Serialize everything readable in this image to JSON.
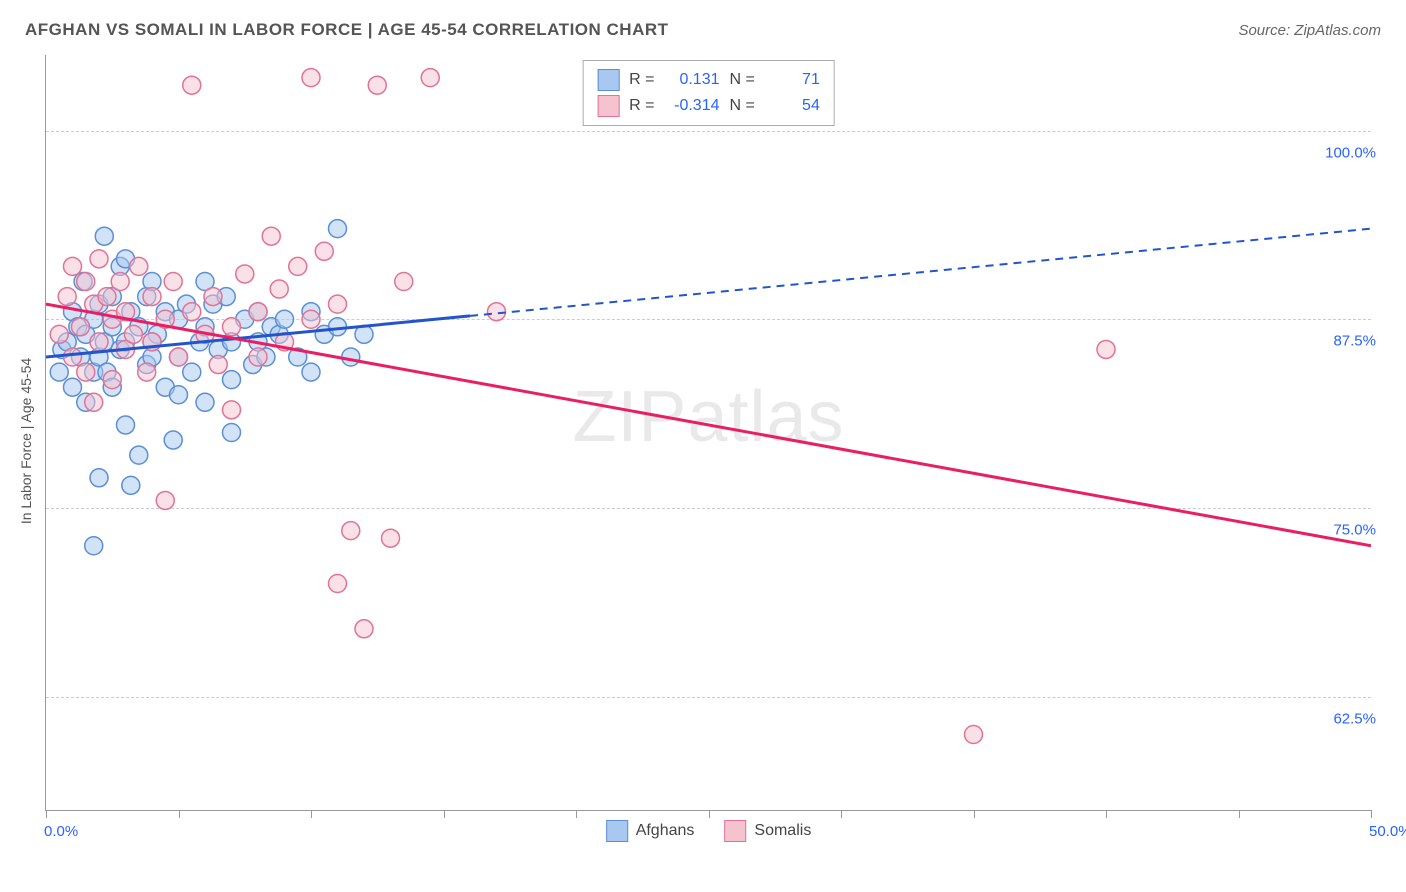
{
  "title": "AFGHAN VS SOMALI IN LABOR FORCE | AGE 45-54 CORRELATION CHART",
  "source": "Source: ZipAtlas.com",
  "watermark_bold": "ZIP",
  "watermark_thin": "atlas",
  "y_axis_title": "In Labor Force | Age 45-54",
  "chart": {
    "type": "scatter",
    "background_color": "#ffffff",
    "grid_color": "#cccccc",
    "axis_color": "#999999",
    "label_color": "#2962ff",
    "xlim": [
      0,
      50
    ],
    "ylim": [
      55,
      105
    ],
    "x_ticks": [
      0,
      5,
      10,
      15,
      20,
      25,
      30,
      35,
      40,
      45,
      50
    ],
    "x_tick_labels": {
      "0": "0.0%",
      "50": "50.0%"
    },
    "y_ticks": [
      62.5,
      75.0,
      87.5,
      100.0
    ],
    "y_tick_labels": [
      "62.5%",
      "75.0%",
      "87.5%",
      "100.0%"
    ],
    "marker_radius": 9,
    "marker_opacity": 0.5,
    "line_width": 3,
    "series": [
      {
        "name": "Afghans",
        "color_fill": "#a8c8f0",
        "color_stroke": "#5b8fd6",
        "line_color": "#2255cc",
        "r": "0.131",
        "n": "71",
        "trend": {
          "x1": 0,
          "y1": 85.0,
          "x2": 50,
          "y2": 93.5,
          "solid_until_x": 16
        },
        "points": [
          [
            0.5,
            84
          ],
          [
            0.6,
            85.5
          ],
          [
            0.8,
            86
          ],
          [
            1,
            88
          ],
          [
            1,
            83
          ],
          [
            1.2,
            87
          ],
          [
            1.3,
            85
          ],
          [
            1.4,
            90
          ],
          [
            1.5,
            82
          ],
          [
            1.5,
            86.5
          ],
          [
            1.8,
            87.5
          ],
          [
            1.8,
            84
          ],
          [
            2,
            88.5
          ],
          [
            2,
            85
          ],
          [
            2,
            77
          ],
          [
            2.2,
            93
          ],
          [
            2.2,
            86
          ],
          [
            2.3,
            84
          ],
          [
            2.5,
            87
          ],
          [
            2.5,
            83
          ],
          [
            2.8,
            91
          ],
          [
            2.8,
            85.5
          ],
          [
            3,
            86
          ],
          [
            3,
            80.5
          ],
          [
            3.2,
            88
          ],
          [
            3.2,
            76.5
          ],
          [
            3.5,
            87
          ],
          [
            3.5,
            78.5
          ],
          [
            3.8,
            89
          ],
          [
            3.8,
            84.5
          ],
          [
            4,
            90
          ],
          [
            4,
            85
          ],
          [
            4.2,
            86.5
          ],
          [
            4.5,
            88
          ],
          [
            4.5,
            83
          ],
          [
            4.8,
            79.5
          ],
          [
            5,
            87.5
          ],
          [
            5,
            85
          ],
          [
            5.3,
            88.5
          ],
          [
            5.5,
            84
          ],
          [
            5.8,
            86
          ],
          [
            6,
            87
          ],
          [
            6,
            82
          ],
          [
            6.3,
            88.5
          ],
          [
            6.5,
            85.5
          ],
          [
            6.8,
            89
          ],
          [
            7,
            86
          ],
          [
            7,
            80
          ],
          [
            7.5,
            87.5
          ],
          [
            7.8,
            84.5
          ],
          [
            8,
            88
          ],
          [
            8.3,
            85
          ],
          [
            8.5,
            87
          ],
          [
            8.8,
            86.5
          ],
          [
            9,
            87.5
          ],
          [
            9.5,
            85
          ],
          [
            10,
            88
          ],
          [
            10,
            84
          ],
          [
            10.5,
            86.5
          ],
          [
            11,
            93.5
          ],
          [
            11,
            87
          ],
          [
            11.5,
            85
          ],
          [
            12,
            86.5
          ],
          [
            1.8,
            72.5
          ],
          [
            2.5,
            89
          ],
          [
            3,
            91.5
          ],
          [
            4,
            86
          ],
          [
            5,
            82.5
          ],
          [
            6,
            90
          ],
          [
            7,
            83.5
          ],
          [
            8,
            86
          ]
        ]
      },
      {
        "name": "Somalis",
        "color_fill": "#f5c2d0",
        "color_stroke": "#e27396",
        "line_color": "#e91e63",
        "r": "-0.314",
        "n": "54",
        "trend": {
          "x1": 0,
          "y1": 88.5,
          "x2": 50,
          "y2": 72.5,
          "solid_until_x": 50
        },
        "points": [
          [
            0.5,
            86.5
          ],
          [
            0.8,
            89
          ],
          [
            1,
            85
          ],
          [
            1,
            91
          ],
          [
            1.3,
            87
          ],
          [
            1.5,
            90
          ],
          [
            1.5,
            84
          ],
          [
            1.8,
            88.5
          ],
          [
            1.8,
            82
          ],
          [
            2,
            91.5
          ],
          [
            2,
            86
          ],
          [
            2.3,
            89
          ],
          [
            2.5,
            87.5
          ],
          [
            2.5,
            83.5
          ],
          [
            2.8,
            90
          ],
          [
            3,
            85.5
          ],
          [
            3,
            88
          ],
          [
            3.3,
            86.5
          ],
          [
            3.5,
            91
          ],
          [
            3.8,
            84
          ],
          [
            4,
            89
          ],
          [
            4,
            86
          ],
          [
            4.5,
            87.5
          ],
          [
            4.5,
            75.5
          ],
          [
            4.8,
            90
          ],
          [
            5,
            85
          ],
          [
            5.5,
            88
          ],
          [
            5.5,
            103
          ],
          [
            6,
            86.5
          ],
          [
            6.3,
            89
          ],
          [
            6.5,
            84.5
          ],
          [
            7,
            87
          ],
          [
            7,
            81.5
          ],
          [
            7.5,
            90.5
          ],
          [
            8,
            88
          ],
          [
            8,
            85
          ],
          [
            8.5,
            93
          ],
          [
            8.8,
            89.5
          ],
          [
            9,
            86
          ],
          [
            9.5,
            91
          ],
          [
            10,
            87.5
          ],
          [
            10,
            103.5
          ],
          [
            10.5,
            92
          ],
          [
            11,
            88.5
          ],
          [
            11.5,
            73.5
          ],
          [
            12,
            67
          ],
          [
            12.5,
            103
          ],
          [
            13,
            73
          ],
          [
            13.5,
            90
          ],
          [
            14.5,
            103.5
          ],
          [
            17,
            88
          ],
          [
            35,
            60
          ],
          [
            40,
            85.5
          ],
          [
            11,
            70
          ]
        ]
      }
    ]
  }
}
